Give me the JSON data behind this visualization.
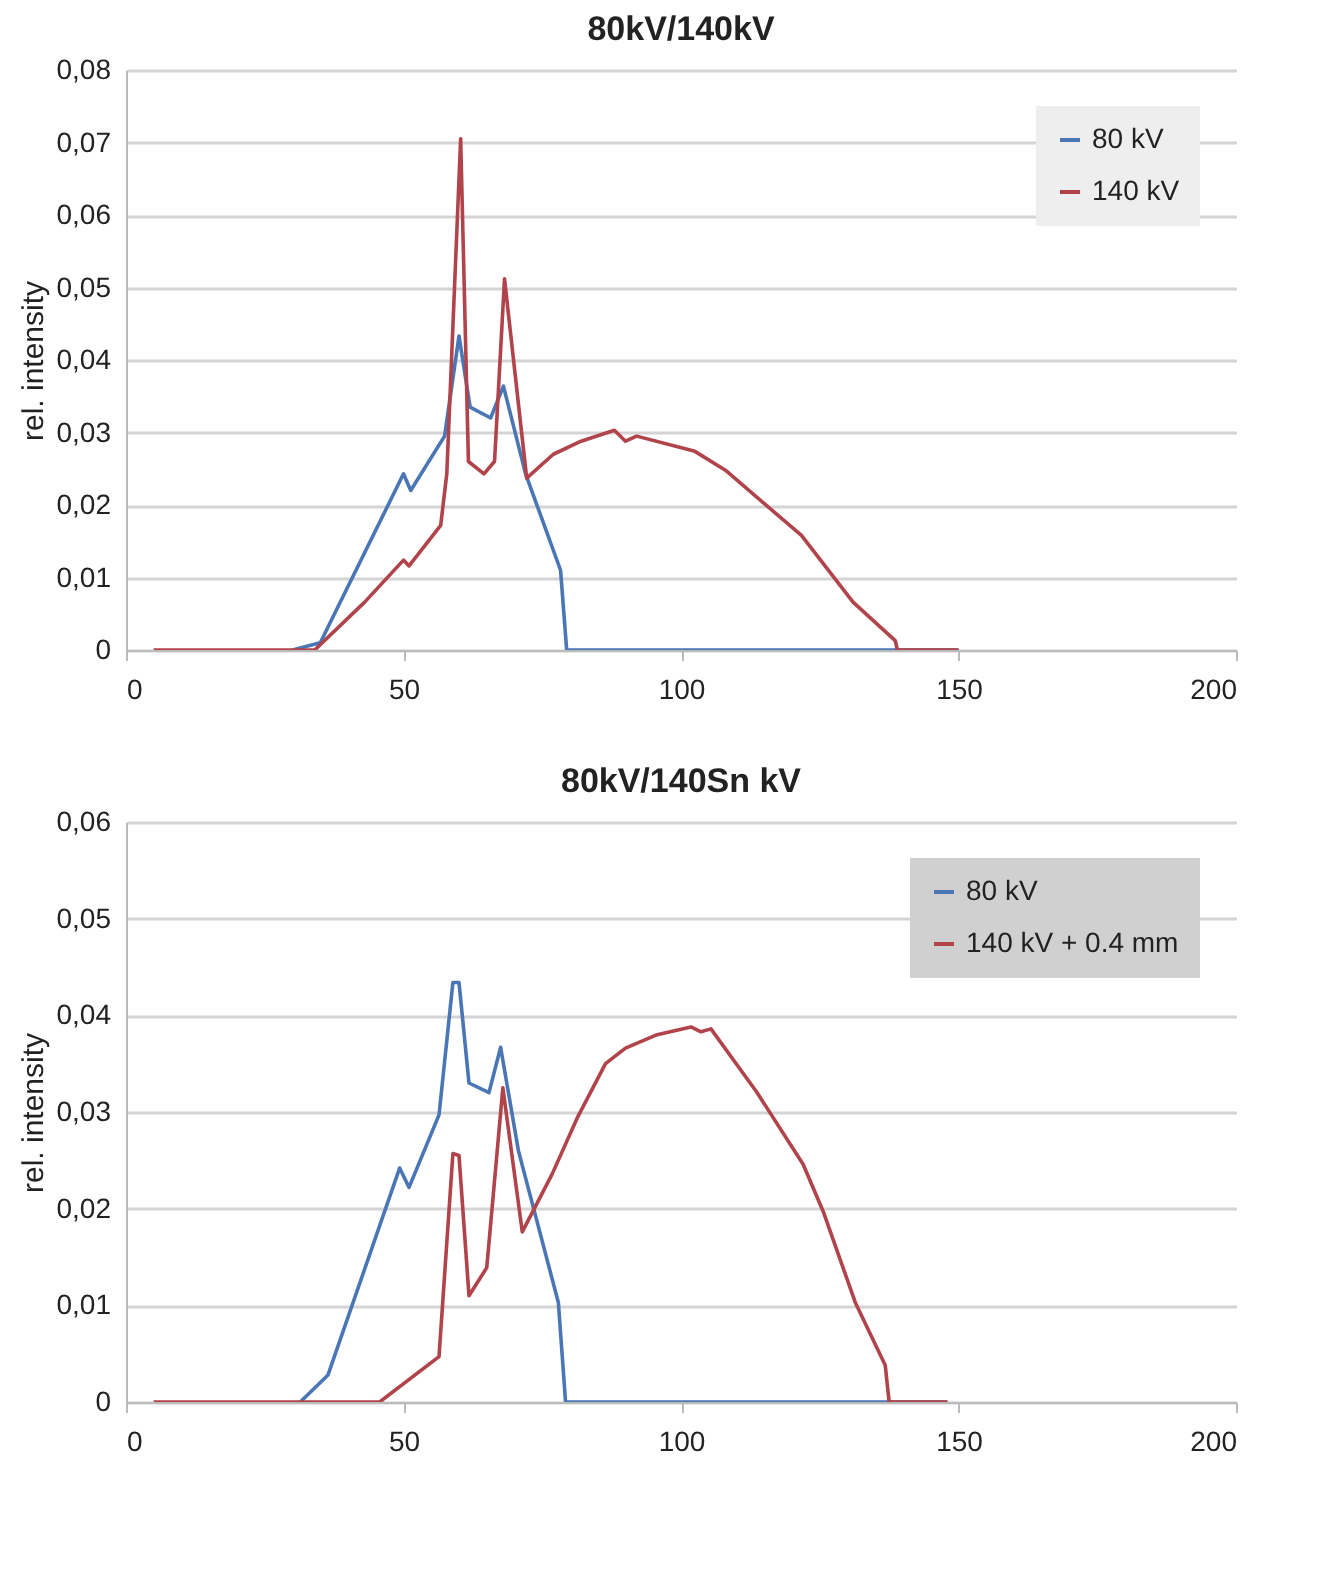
{
  "chart_data": [
    {
      "type": "line",
      "title": "80kV/140kV",
      "ylabel": "rel. intensity",
      "xlim": [
        0,
        200
      ],
      "xticks": [
        0,
        50,
        100,
        150,
        200
      ],
      "ylim": [
        0,
        0.08
      ],
      "yticks": [
        {
          "value": 0,
          "label": "0"
        },
        {
          "value": 0.01,
          "label": "0,01"
        },
        {
          "value": 0.02,
          "label": "0,02"
        },
        {
          "value": 0.03,
          "label": "0,03"
        },
        {
          "value": 0.04,
          "label": "0,04"
        },
        {
          "value": 0.05,
          "label": "0,05"
        },
        {
          "value": 0.06,
          "label": "0,06"
        },
        {
          "value": 0.07,
          "label": "0,07"
        },
        {
          "value": 0.08,
          "label": "0,08"
        }
      ],
      "grid": "y",
      "legend": "top right",
      "series": [
        {
          "name": "80 kV",
          "color": "#4a76b5",
          "x": [
            30,
            35,
            50,
            51.3,
            57.4,
            60,
            62,
            65.7,
            68,
            72,
            78.3,
            79.4,
            150
          ],
          "values": [
            0,
            0.001,
            0.0243,
            0.022,
            0.0295,
            0.0433,
            0.0335,
            0.032,
            0.0364,
            0.0243,
            0.011,
            0,
            0
          ]
        },
        {
          "name": "140 kV",
          "color": "#b0444a",
          "x": [
            5,
            34,
            43,
            50,
            51,
            56.7,
            57.8,
            60.3,
            61.7,
            64.5,
            66.4,
            68.2,
            72.2,
            77,
            82,
            88,
            90,
            92,
            102.5,
            108,
            121.7,
            131,
            138.6,
            139,
            150
          ],
          "values": [
            0,
            0,
            0.0066,
            0.0124,
            0.0116,
            0.0172,
            0.0243,
            0.0705,
            0.026,
            0.0243,
            0.026,
            0.0512,
            0.0237,
            0.027,
            0.0288,
            0.0303,
            0.0288,
            0.0295,
            0.0274,
            0.0248,
            0.0158,
            0.0066,
            0.0013,
            0,
            0
          ]
        }
      ]
    },
    {
      "type": "line",
      "title": "80kV/140Sn kV",
      "ylabel": "rel. intensity",
      "xlim": [
        0,
        200
      ],
      "xticks": [
        0,
        50,
        100,
        150,
        200
      ],
      "ylim": [
        0,
        0.06
      ],
      "yticks": [
        {
          "value": 0,
          "label": "0"
        },
        {
          "value": 0.01,
          "label": "0,01"
        },
        {
          "value": 0.02,
          "label": "0,02"
        },
        {
          "value": 0.03,
          "label": "0,03"
        },
        {
          "value": 0.04,
          "label": "0,04"
        },
        {
          "value": 0.05,
          "label": "0,05"
        },
        {
          "value": 0.06,
          "label": "0,06"
        }
      ],
      "grid": "y",
      "legend": "top right",
      "series": [
        {
          "name": "80 kV",
          "color": "#4a76b5",
          "x": [
            31.4,
            36.4,
            49.3,
            51,
            56.4,
            58.9,
            60,
            61.8,
            65.4,
            67.5,
            70.7,
            77.9,
            79.2,
            148
          ],
          "values": [
            0,
            0.0028,
            0.0242,
            0.0222,
            0.0297,
            0.0434,
            0.0434,
            0.033,
            0.032,
            0.0367,
            0.026,
            0.0103,
            0,
            0
          ]
        },
        {
          "name": "140 kV + 0.4 mm",
          "color": "#b0444a",
          "x": [
            5,
            45.7,
            56.4,
            58.9,
            60,
            61.8,
            65,
            67.9,
            71.4,
            76.8,
            81.4,
            86.4,
            90,
            95.7,
            101.8,
            103.6,
            105.4,
            113.6,
            122,
            125.7,
            131.4,
            136.8,
            137.5,
            148
          ],
          "values": [
            0,
            0,
            0.0047,
            0.0257,
            0.0255,
            0.011,
            0.0139,
            0.0325,
            0.0176,
            0.0236,
            0.0295,
            0.035,
            0.0366,
            0.038,
            0.0388,
            0.0383,
            0.0386,
            0.0321,
            0.0246,
            0.0196,
            0.0103,
            0.0038,
            0,
            0
          ]
        }
      ]
    }
  ]
}
